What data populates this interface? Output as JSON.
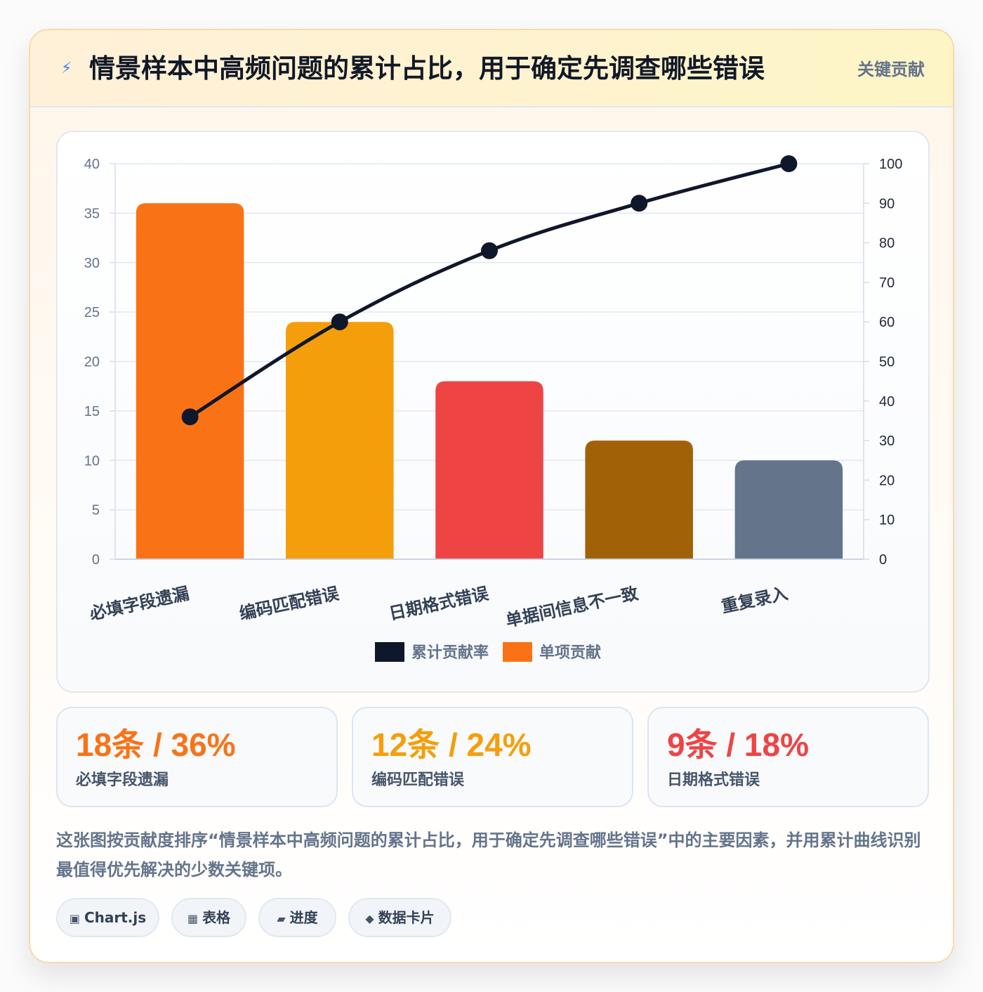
{
  "header": {
    "icon": "lightning-icon",
    "title": "情景样本中高频问题的累计占比，用于确定先调查哪些错误",
    "badge": "关键贡献"
  },
  "chart_data": {
    "type": "bar",
    "categories": [
      "必填字段遗漏",
      "编码匹配错误",
      "日期格式错误",
      "单据间信息不一致",
      "重复录入"
    ],
    "series": [
      {
        "name": "单项贡献",
        "type": "bar",
        "axis": "left",
        "values": [
          36,
          24,
          18,
          12,
          10
        ],
        "colors": [
          "#f97316",
          "#f59e0b",
          "#ef4444",
          "#a16207",
          "#64748b"
        ]
      },
      {
        "name": "累计贡献率",
        "type": "line",
        "axis": "right",
        "values": [
          36,
          60,
          78,
          90,
          100
        ],
        "color": "#0f172a"
      }
    ],
    "legend": [
      {
        "label": "累计贡献率",
        "color": "#0f172a"
      },
      {
        "label": "单项贡献",
        "color": "#f97316"
      }
    ],
    "legend_position": "bottom",
    "y_left": {
      "min": 0,
      "max": 40,
      "step": 5
    },
    "y_right": {
      "min": 0,
      "max": 100,
      "step": 10
    },
    "grid": true
  },
  "stats": [
    {
      "value": "18条 / 36%",
      "label": "必填字段遗漏",
      "color": "#f97316"
    },
    {
      "value": "12条 / 24%",
      "label": "编码匹配错误",
      "color": "#f59e0b"
    },
    {
      "value": "9条 / 18%",
      "label": "日期格式错误",
      "color": "#ef4444"
    }
  ],
  "description": "这张图按贡献度排序“情景样本中高频问题的累计占比，用于确定先调查哪些错误”中的主要因素，并用累计曲线识别最值得优先解决的少数关键项。",
  "tags": [
    {
      "icon": "square-icon",
      "glyph": "▣",
      "label": "Chart.js"
    },
    {
      "icon": "table-icon",
      "glyph": "▦",
      "label": "表格"
    },
    {
      "icon": "progress-icon",
      "glyph": "▰",
      "label": "进度"
    },
    {
      "icon": "diamond-icon",
      "glyph": "◆",
      "label": "数据卡片"
    }
  ]
}
